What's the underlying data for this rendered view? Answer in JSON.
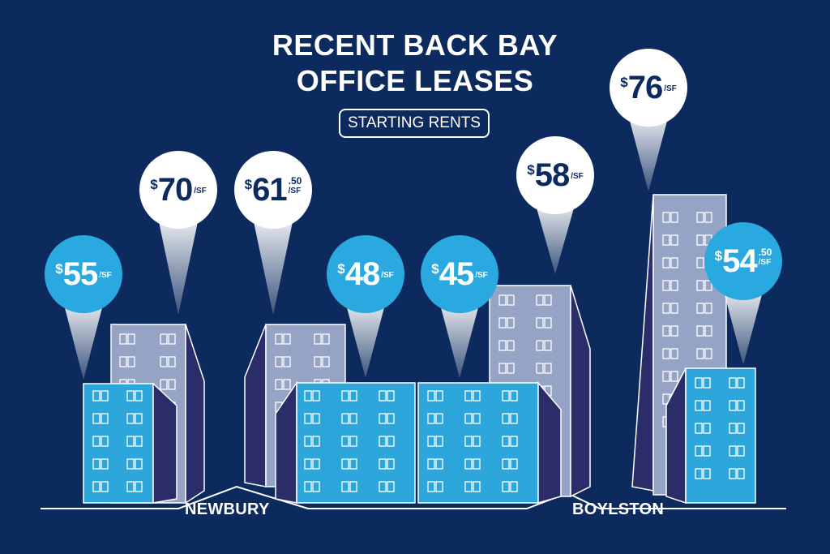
{
  "title_line1": "RECENT BACK BAY",
  "title_line2": "OFFICE LEASES",
  "subtitle": "STARTING RENTS",
  "streets": [
    "NEWBURY",
    "BOYLSTON"
  ],
  "unit": "/SF",
  "currency": "$",
  "colors": {
    "background": "#0d2a5e",
    "pin_light": "#ffffff",
    "pin_blue": "#29a9e0",
    "building_blue": "#2da6dc",
    "building_grey": "#95a3c4",
    "building_navy": "#2b2d6b"
  },
  "rents": [
    {
      "value": "55",
      "cents": "",
      "style": "blue"
    },
    {
      "value": "70",
      "cents": "",
      "style": "light"
    },
    {
      "value": "61",
      "cents": ".50",
      "style": "light"
    },
    {
      "value": "48",
      "cents": "",
      "style": "blue"
    },
    {
      "value": "45",
      "cents": "",
      "style": "blue"
    },
    {
      "value": "58",
      "cents": "",
      "style": "light"
    },
    {
      "value": "76",
      "cents": "",
      "style": "light"
    },
    {
      "value": "54",
      "cents": ".50",
      "style": "blue"
    }
  ]
}
